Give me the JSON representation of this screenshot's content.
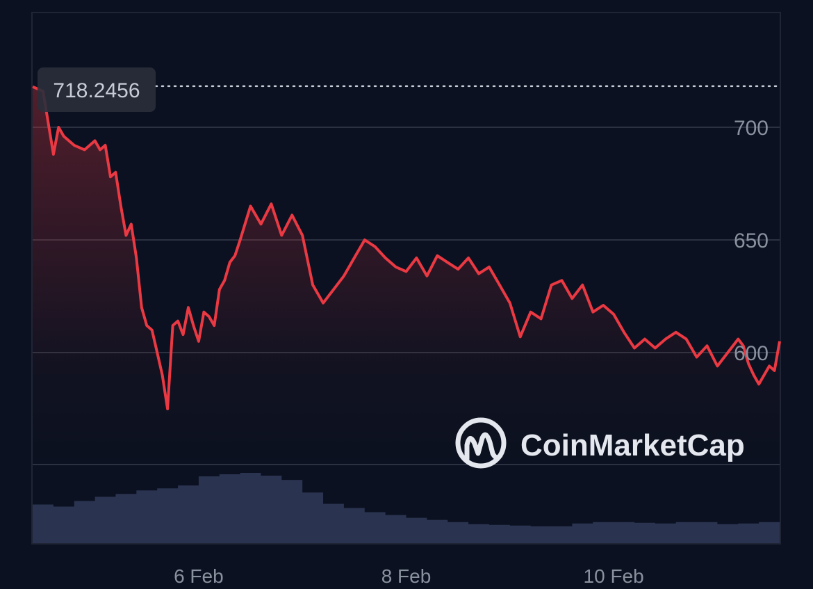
{
  "watermark": {
    "label": "CoinMarketCap"
  },
  "colors": {
    "background": "#0b1120",
    "price_line": "#ea3943",
    "volume": "#2a3350",
    "grid": "#2b3140",
    "axis_text": "#8a919e"
  },
  "chart_data": [
    {
      "type": "line",
      "title": "",
      "xlabel": "",
      "ylabel": "",
      "x_ticks": [
        "6 Feb",
        "8 Feb",
        "10 Feb"
      ],
      "y_ticks": [
        600,
        650,
        700
      ],
      "ylim": [
        550,
        750
      ],
      "x_range_days": [
        4.4,
        11.6
      ],
      "last_price_label": "718.2456",
      "reference_line_value": 718.2456,
      "grid": true,
      "y_axis_position": "right",
      "series": [
        {
          "x": [
            4.4,
            4.5,
            4.6,
            4.65,
            4.7,
            4.8,
            4.9,
            5.0,
            5.05,
            5.1,
            5.15,
            5.2,
            5.25,
            5.3,
            5.35,
            5.4,
            5.45,
            5.5,
            5.55,
            5.6,
            5.65,
            5.7,
            5.75,
            5.8,
            5.85,
            5.9,
            5.95,
            6.0,
            6.05,
            6.1,
            6.15,
            6.2,
            6.25,
            6.3,
            6.35,
            6.4,
            6.5,
            6.6,
            6.7,
            6.8,
            6.9,
            7.0,
            7.1,
            7.2,
            7.3,
            7.4,
            7.5,
            7.6,
            7.7,
            7.8,
            7.9,
            8.0,
            8.1,
            8.2,
            8.3,
            8.4,
            8.5,
            8.6,
            8.7,
            8.8,
            8.9,
            9.0,
            9.1,
            9.2,
            9.3,
            9.4,
            9.5,
            9.6,
            9.7,
            9.8,
            9.9,
            10.0,
            10.1,
            10.2,
            10.3,
            10.4,
            10.5,
            10.6,
            10.7,
            10.8,
            10.9,
            11.0,
            11.1,
            11.2,
            11.25,
            11.3,
            11.35,
            11.4,
            11.45,
            11.5,
            11.55,
            11.6
          ],
          "values": [
            718,
            716,
            688,
            700,
            696,
            692,
            690,
            694,
            690,
            692,
            678,
            680,
            665,
            652,
            657,
            642,
            620,
            612,
            610,
            600,
            590,
            575,
            612,
            614,
            608,
            620,
            612,
            605,
            618,
            616,
            612,
            628,
            632,
            640,
            643,
            650,
            665,
            657,
            666,
            652,
            661,
            652,
            630,
            622,
            628,
            634,
            642,
            650,
            647,
            642,
            638,
            636,
            642,
            634,
            643,
            640,
            637,
            642,
            635,
            638,
            630,
            622,
            607,
            618,
            615,
            630,
            632,
            624,
            630,
            618,
            621,
            617,
            609,
            602,
            606,
            602,
            606,
            609,
            606,
            598,
            603,
            594,
            600,
            606,
            603,
            595,
            590,
            586,
            590,
            594,
            592,
            605
          ]
        }
      ]
    },
    {
      "type": "area",
      "title": "",
      "series": [
        {
          "x": [
            4.4,
            4.6,
            4.8,
            5.0,
            5.2,
            5.4,
            5.6,
            5.8,
            6.0,
            6.2,
            6.4,
            6.6,
            6.8,
            7.0,
            7.2,
            7.4,
            7.6,
            7.8,
            8.0,
            8.2,
            8.4,
            8.6,
            8.8,
            9.0,
            9.2,
            9.4,
            9.6,
            9.8,
            10.0,
            10.2,
            10.4,
            10.6,
            10.8,
            11.0,
            11.2,
            11.4,
            11.6
          ],
          "values": [
            0.55,
            0.52,
            0.6,
            0.66,
            0.7,
            0.75,
            0.78,
            0.82,
            0.95,
            0.98,
            1.0,
            0.96,
            0.9,
            0.72,
            0.56,
            0.5,
            0.44,
            0.4,
            0.36,
            0.33,
            0.3,
            0.27,
            0.26,
            0.25,
            0.24,
            0.24,
            0.28,
            0.3,
            0.3,
            0.29,
            0.28,
            0.3,
            0.3,
            0.27,
            0.28,
            0.3,
            0.33
          ]
        }
      ]
    }
  ]
}
